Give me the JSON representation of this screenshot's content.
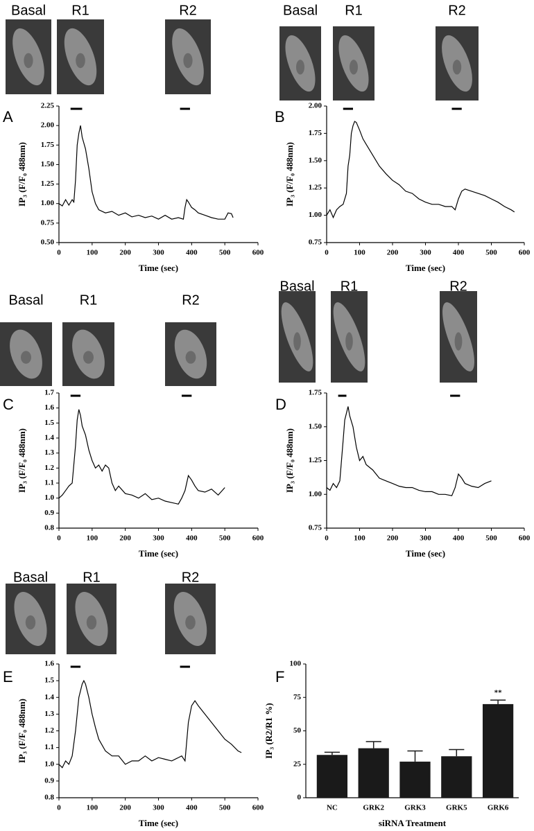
{
  "chart_data": [
    {
      "type": "line",
      "panel": "A",
      "images": [
        "Basal",
        "R1",
        "R2"
      ],
      "xlabel": "Time (sec)",
      "ylabel": "IP₃ (F/F₀ 488nm)",
      "color": "#000000",
      "xlim": [
        0,
        600
      ],
      "xticks": [
        0,
        100,
        200,
        300,
        400,
        500,
        600
      ],
      "ylim": [
        0.5,
        2.25
      ],
      "yticks": [
        {
          "value": 0.5,
          "label": "0.50"
        },
        0.75,
        {
          "value": 1,
          "label": "1.00"
        },
        1.25,
        {
          "value": 1.5,
          "label": "1.50"
        },
        1.75,
        {
          "value": 2,
          "label": "2.00"
        },
        2.25
      ],
      "stimuli": [
        [
          35,
          70
        ],
        [
          365,
          395
        ]
      ],
      "x": [
        0,
        10,
        20,
        30,
        40,
        45,
        50,
        55,
        60,
        65,
        70,
        80,
        90,
        100,
        110,
        120,
        140,
        160,
        180,
        200,
        220,
        240,
        260,
        280,
        300,
        320,
        340,
        360,
        375,
        380,
        385,
        390,
        400,
        410,
        420,
        440,
        460,
        480,
        500,
        510,
        520,
        525
      ],
      "values": [
        1.0,
        0.97,
        1.05,
        0.98,
        1.05,
        1.02,
        1.3,
        1.75,
        1.9,
        2.0,
        1.85,
        1.7,
        1.45,
        1.15,
        1.0,
        0.92,
        0.88,
        0.9,
        0.85,
        0.88,
        0.83,
        0.85,
        0.82,
        0.84,
        0.8,
        0.85,
        0.8,
        0.82,
        0.8,
        0.95,
        1.05,
        1.02,
        0.95,
        0.92,
        0.88,
        0.85,
        0.82,
        0.8,
        0.8,
        0.88,
        0.87,
        0.82
      ]
    },
    {
      "type": "line",
      "panel": "B",
      "images": [
        "Basal",
        "R1",
        "R2"
      ],
      "xlabel": "Time (sec)",
      "ylabel": "IP₃ (F/F₀ 488nm)",
      "color": "#000000",
      "xlim": [
        0,
        600
      ],
      "xticks": [
        0,
        100,
        200,
        300,
        400,
        500,
        600
      ],
      "ylim": [
        0.75,
        2
      ],
      "yticks": [
        0.75,
        {
          "value": 1,
          "label": "1.00"
        },
        1.25,
        {
          "value": 1.5,
          "label": "1.50"
        },
        1.75,
        {
          "value": 2,
          "label": "2.00"
        }
      ],
      "stimuli": [
        [
          50,
          80
        ],
        [
          380,
          410
        ]
      ],
      "x": [
        0,
        10,
        20,
        30,
        40,
        50,
        60,
        65,
        70,
        75,
        80,
        85,
        90,
        100,
        110,
        120,
        140,
        160,
        180,
        200,
        220,
        240,
        260,
        280,
        300,
        320,
        340,
        360,
        380,
        390,
        400,
        410,
        420,
        440,
        460,
        480,
        500,
        520,
        540,
        560,
        570
      ],
      "values": [
        1.0,
        1.05,
        0.98,
        1.05,
        1.08,
        1.1,
        1.2,
        1.45,
        1.55,
        1.75,
        1.82,
        1.86,
        1.85,
        1.78,
        1.7,
        1.65,
        1.55,
        1.45,
        1.38,
        1.32,
        1.28,
        1.22,
        1.2,
        1.15,
        1.12,
        1.1,
        1.1,
        1.08,
        1.08,
        1.05,
        1.15,
        1.22,
        1.24,
        1.22,
        1.2,
        1.18,
        1.15,
        1.12,
        1.08,
        1.05,
        1.03
      ]
    },
    {
      "type": "line",
      "panel": "C",
      "images": [
        "Basal",
        "R1",
        "R2"
      ],
      "xlabel": "Time (sec)",
      "ylabel": "IP₃ (F/F₀ 488nm)",
      "color": "#000000",
      "xlim": [
        0,
        600
      ],
      "xticks": [
        0,
        100,
        200,
        300,
        400,
        500,
        600
      ],
      "ylim": [
        0.8,
        1.7
      ],
      "yticks": [
        0.8,
        0.9,
        {
          "value": 1,
          "label": "1.0"
        },
        1.1,
        1.2,
        1.3,
        1.4,
        1.5,
        1.6,
        1.7
      ],
      "stimuli": [
        [
          35,
          65
        ],
        [
          370,
          400
        ]
      ],
      "x": [
        0,
        10,
        20,
        30,
        40,
        50,
        55,
        60,
        65,
        70,
        80,
        90,
        100,
        110,
        120,
        130,
        140,
        150,
        160,
        170,
        180,
        200,
        220,
        240,
        260,
        280,
        300,
        320,
        340,
        360,
        370,
        380,
        390,
        400,
        410,
        420,
        440,
        460,
        480,
        500
      ],
      "values": [
        1.0,
        1.02,
        1.05,
        1.08,
        1.1,
        1.35,
        1.52,
        1.59,
        1.55,
        1.48,
        1.42,
        1.32,
        1.25,
        1.2,
        1.22,
        1.18,
        1.22,
        1.2,
        1.1,
        1.05,
        1.08,
        1.03,
        1.02,
        1.0,
        1.03,
        0.99,
        1.0,
        0.98,
        0.97,
        0.96,
        1.0,
        1.05,
        1.15,
        1.12,
        1.08,
        1.05,
        1.04,
        1.06,
        1.02,
        1.07
      ]
    },
    {
      "type": "line",
      "panel": "D",
      "images": [
        "Basal",
        "R1",
        "R2"
      ],
      "xlabel": "Time (sec)",
      "ylabel": "IP₃ (F/F₀ 488nm)",
      "color": "#000000",
      "xlim": [
        0,
        600
      ],
      "xticks": [
        0,
        100,
        200,
        300,
        400,
        500,
        600
      ],
      "ylim": [
        0.75,
        1.75
      ],
      "yticks": [
        0.75,
        {
          "value": 1,
          "label": "1.00"
        },
        1.25,
        {
          "value": 1.5,
          "label": "1.50"
        },
        1.75
      ],
      "stimuli": [
        [
          35,
          60
        ],
        [
          375,
          405
        ]
      ],
      "x": [
        0,
        10,
        20,
        30,
        40,
        50,
        55,
        60,
        65,
        70,
        80,
        90,
        100,
        110,
        120,
        140,
        160,
        180,
        200,
        220,
        240,
        260,
        280,
        300,
        320,
        340,
        360,
        380,
        390,
        400,
        410,
        420,
        440,
        460,
        480,
        500
      ],
      "values": [
        1.05,
        1.03,
        1.08,
        1.05,
        1.1,
        1.4,
        1.55,
        1.6,
        1.65,
        1.58,
        1.5,
        1.35,
        1.25,
        1.28,
        1.22,
        1.18,
        1.12,
        1.1,
        1.08,
        1.06,
        1.05,
        1.05,
        1.03,
        1.02,
        1.02,
        1.0,
        1.0,
        0.99,
        1.05,
        1.15,
        1.12,
        1.08,
        1.06,
        1.05,
        1.08,
        1.1
      ]
    },
    {
      "type": "line",
      "panel": "E",
      "images": [
        "Basal",
        "R1",
        "R2"
      ],
      "xlabel": "Time (sec)",
      "ylabel": "IP₃ (F/F₀ 488nm)",
      "color": "#000000",
      "xlim": [
        0,
        600
      ],
      "xticks": [
        0,
        100,
        200,
        300,
        400,
        500,
        600
      ],
      "ylim": [
        0.8,
        1.6
      ],
      "yticks": [
        0.8,
        0.9,
        {
          "value": 1,
          "label": "1.0"
        },
        1.1,
        1.2,
        1.3,
        1.4,
        1.5,
        1.6
      ],
      "stimuli": [
        [
          35,
          65
        ],
        [
          365,
          395
        ]
      ],
      "x": [
        0,
        10,
        20,
        30,
        40,
        50,
        60,
        70,
        75,
        80,
        90,
        100,
        110,
        120,
        140,
        160,
        180,
        200,
        220,
        240,
        260,
        280,
        300,
        320,
        340,
        360,
        370,
        380,
        390,
        400,
        410,
        420,
        440,
        460,
        480,
        500,
        520,
        540,
        550
      ],
      "values": [
        1.0,
        0.98,
        1.02,
        1.0,
        1.05,
        1.2,
        1.4,
        1.48,
        1.5,
        1.48,
        1.4,
        1.3,
        1.22,
        1.15,
        1.08,
        1.05,
        1.05,
        1.0,
        1.02,
        1.02,
        1.05,
        1.02,
        1.04,
        1.03,
        1.02,
        1.04,
        1.05,
        1.02,
        1.25,
        1.35,
        1.38,
        1.35,
        1.3,
        1.25,
        1.2,
        1.15,
        1.12,
        1.08,
        1.07
      ]
    },
    {
      "type": "bar",
      "panel": "F",
      "xlabel": "siRNA Treatment",
      "ylabel": "IP₃ (R2/R1 %)",
      "color": "#1a1a1a",
      "categories": [
        "NC",
        "GRK2",
        "GRK3",
        "GRK5",
        "GRK6"
      ],
      "values": [
        32,
        37,
        27,
        31,
        70
      ],
      "errors": [
        2,
        5,
        8,
        5,
        3
      ],
      "ylim": [
        0,
        100
      ],
      "yticks": [
        0,
        25,
        50,
        75,
        100
      ],
      "annotations": [
        {
          "category": "GRK6",
          "text": "**"
        }
      ]
    }
  ]
}
